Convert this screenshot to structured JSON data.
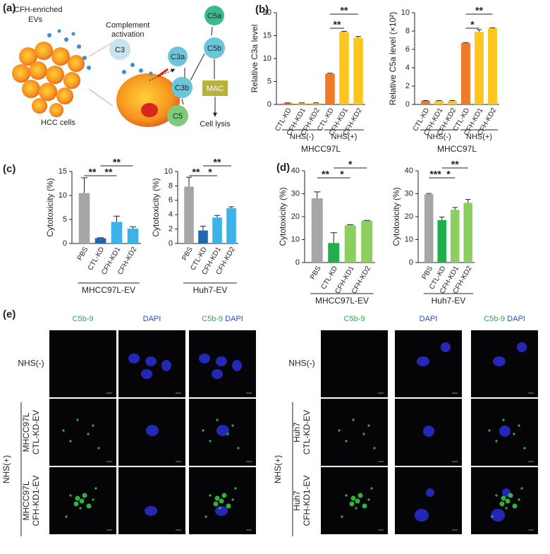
{
  "panel_labels": [
    "(a)",
    "(b)",
    "(c)",
    "(d)",
    "(e)"
  ],
  "diagram": {
    "evs": [
      "CFH-enriched",
      "EVs"
    ],
    "activation": [
      "Complement",
      "activation"
    ],
    "cells": "HCC cells",
    "nodes": [
      "C3",
      "C3a",
      "C3b",
      "C5a",
      "C5b",
      "C5",
      "MAC"
    ],
    "outcome": "Cell lysis"
  },
  "chart_data": [
    {
      "type": "bar",
      "ylabel": "Relative C3a level",
      "categories": [
        "CTL-KD",
        "CFH-KD1",
        "CFH-KD2",
        "CTL-KD",
        "CFH-KD1",
        "CFH-KD2"
      ],
      "values": [
        0.3,
        0.3,
        0.3,
        6.7,
        15.8,
        14.5
      ],
      "errors": [
        0.05,
        0.05,
        0.05,
        0.1,
        0.15,
        0.3
      ],
      "colors": [
        "#f07a28",
        "#ffc71e",
        "#ffc71e",
        "#f07a28",
        "#ffc71e",
        "#ffc71e"
      ],
      "ylim": [
        0,
        20
      ],
      "yticks": [
        0,
        5,
        10,
        15,
        20
      ],
      "groups": [
        "NHS(-)",
        "NHS(+)"
      ],
      "xlabel": "MHCC97L",
      "annotations": [
        "**",
        "**"
      ]
    },
    {
      "type": "bar",
      "ylabel": "Relative C5a level (×10²)",
      "categories": [
        "CTL-KD",
        "CFH-KD1",
        "CFH-KD2",
        "CTL-KD",
        "CFH-KD1",
        "CFH-KD2"
      ],
      "values": [
        0.4,
        0.4,
        0.4,
        6.7,
        7.9,
        8.3
      ],
      "errors": [
        0.02,
        0.02,
        0.02,
        0.05,
        0.25,
        0.05
      ],
      "colors": [
        "#f07a28",
        "#ffc71e",
        "#ffc71e",
        "#f07a28",
        "#ffc71e",
        "#ffc71e"
      ],
      "ylim": [
        0,
        10
      ],
      "yticks": [
        0,
        2,
        4,
        6,
        8,
        10
      ],
      "groups": [
        "NHS(-)",
        "NHS(+)"
      ],
      "xlabel": "MHCC97L",
      "annotations": [
        "*",
        "**"
      ]
    },
    {
      "type": "bar",
      "ylabel": "Cytotoxicity (%)",
      "categories": [
        "PBS",
        "CTL-KD",
        "CFH-KD1",
        "CFH-KD2"
      ],
      "values": [
        10.5,
        1.1,
        4.5,
        3.1
      ],
      "errors": [
        3.2,
        0.1,
        1.2,
        0.4
      ],
      "colors": [
        "#a6a6a6",
        "#2166b0",
        "#3db2ea",
        "#3db2ea"
      ],
      "ylim": [
        0,
        15
      ],
      "yticks": [
        0,
        5,
        10,
        15
      ],
      "xlabel": "MHCC97L-EV",
      "annotations": [
        "**",
        "**",
        "**"
      ]
    },
    {
      "type": "bar",
      "ylabel": "Cytotoxicity (%)",
      "categories": [
        "PBS",
        "CTL-KD",
        "CFH-KD1",
        "CFH-KD2"
      ],
      "values": [
        7.9,
        1.8,
        3.6,
        4.9
      ],
      "errors": [
        1.3,
        0.6,
        0.3,
        0.2
      ],
      "colors": [
        "#a6a6a6",
        "#2166b0",
        "#3db2ea",
        "#3db2ea"
      ],
      "ylim": [
        0,
        10
      ],
      "yticks": [
        0,
        2,
        4,
        6,
        8,
        10
      ],
      "xlabel": "Huh7-EV",
      "annotations": [
        "**",
        "*",
        "**"
      ]
    },
    {
      "type": "bar",
      "ylabel": "Cytotoxicity (%)",
      "categories": [
        "PBS",
        "CTL-KD",
        "CFH-KD1",
        "CFH-KD2"
      ],
      "values": [
        28,
        8.5,
        16.2,
        18.2
      ],
      "errors": [
        2.8,
        4.5,
        0.3,
        0.2
      ],
      "colors": [
        "#a6a6a6",
        "#1fb04b",
        "#8ccf5f",
        "#8ccf5f"
      ],
      "ylim": [
        0,
        40
      ],
      "yticks": [
        0,
        10,
        20,
        30,
        40
      ],
      "xlabel": "MHCC97L-EV",
      "annotations": [
        "**",
        "*",
        "*"
      ]
    },
    {
      "type": "bar",
      "ylabel": "Cytotoxicity (%)",
      "categories": [
        "PBS",
        "CTL-KD",
        "CFH-KD1",
        "CFH-KD2"
      ],
      "values": [
        29.8,
        18.5,
        23,
        26
      ],
      "errors": [
        0.3,
        1.3,
        1,
        1.5
      ],
      "colors": [
        "#a6a6a6",
        "#1fb04b",
        "#8ccf5f",
        "#8ccf5f"
      ],
      "ylim": [
        0,
        40
      ],
      "yticks": [
        0,
        10,
        20,
        30,
        40
      ],
      "xlabel": "Huh7-EV",
      "annotations": [
        "***",
        "*",
        "**"
      ]
    }
  ],
  "micrographs": [
    {
      "columns": [
        "C5b-9",
        "DAPI",
        "C5b-9",
        "DAPI"
      ],
      "condition": "NHS(+)",
      "rows": [
        [
          "NHS(-)"
        ],
        [
          "MHCC97L",
          "CTL-KD-EV"
        ],
        [
          "MHCC97L",
          "CFH-KD1-EV"
        ]
      ]
    },
    {
      "columns": [
        "C5b-9",
        "DAPI",
        "C5b-9",
        "DAPI"
      ],
      "condition": "NHS(+)",
      "rows": [
        [
          "NHS(-)"
        ],
        [
          "Huh7",
          "CTL-KD-EV"
        ],
        [
          "Huh7",
          "CFH-KD1-EV"
        ]
      ]
    }
  ]
}
